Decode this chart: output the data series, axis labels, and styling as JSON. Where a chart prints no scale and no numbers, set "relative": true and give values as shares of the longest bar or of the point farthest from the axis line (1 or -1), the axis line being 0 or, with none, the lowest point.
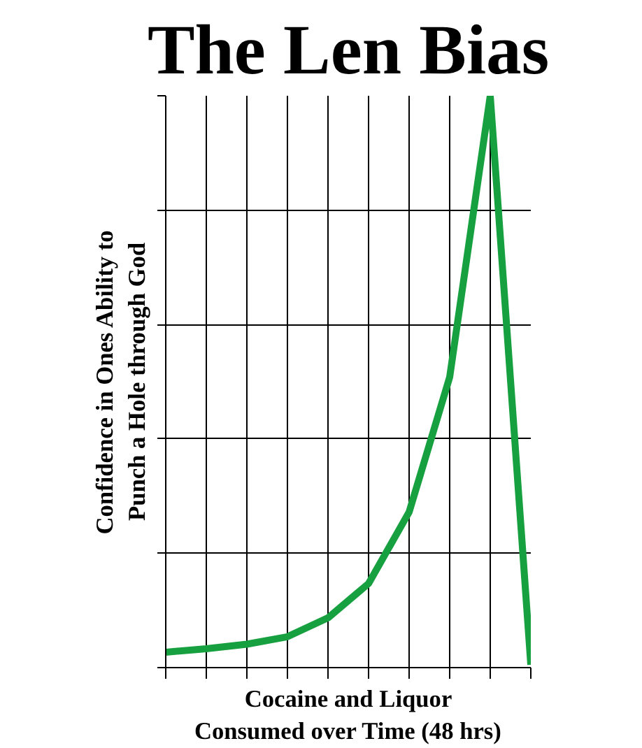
{
  "chart_data": {
    "type": "line",
    "title": "The Len Bias",
    "xlabel": "Cocaine and Liquor\nConsumed over Time (48 hrs)",
    "ylabel": "Confidence in Ones Ability to\nPunch a Hole through God",
    "relative": true,
    "categories": [
      null,
      null,
      null,
      null,
      null,
      null,
      null,
      null,
      null,
      null
    ],
    "series": [
      {
        "color": "#17a03f",
        "values": [
          0.027,
          0.033,
          0.041,
          0.054,
          0.087,
          0.147,
          0.272,
          0.508,
          1.0,
          0.005
        ]
      }
    ],
    "grid": true
  }
}
